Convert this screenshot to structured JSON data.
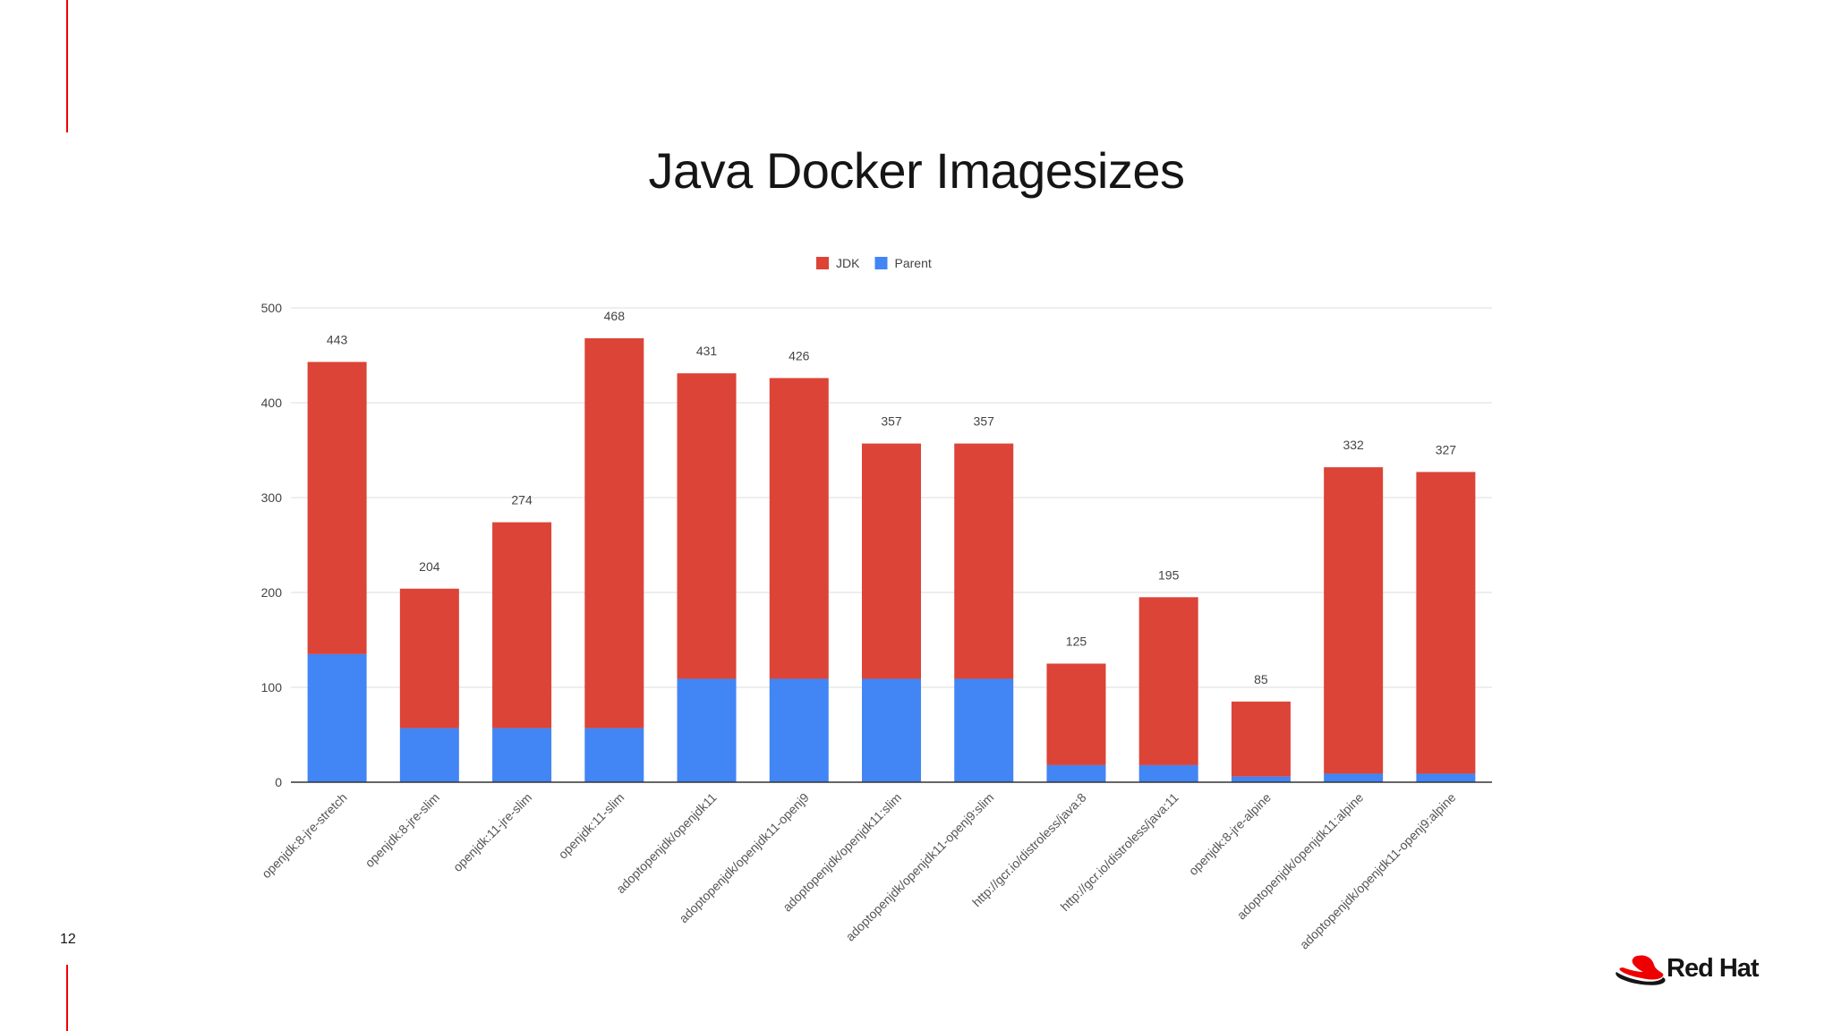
{
  "slide": {
    "title": "Java Docker Imagesizes",
    "page_number": "12",
    "brand": "Red Hat",
    "logo_icon": "red-hat-fedora-icon"
  },
  "colors": {
    "jdk": "#DB4437",
    "parent": "#4285F4",
    "accent_rule": "#EE0000",
    "gridline": "#DDDDDD",
    "axis": "#333333"
  },
  "chart_data": {
    "type": "bar",
    "stacked": true,
    "title": "",
    "xlabel": "",
    "ylabel": "",
    "ylim": [
      0,
      500
    ],
    "yticks": [
      0,
      100,
      200,
      300,
      400,
      500
    ],
    "grid": true,
    "legend_position": "top-center",
    "categories": [
      "openjdk:8-jre-stretch",
      "openjdk:8-jre-slim",
      "openjdk:11-jre-slim",
      "openjdk:11-slim",
      "adoptopenjdk/openjdk11",
      "adoptopenjdk/openjdk11-openj9",
      "adoptopenjdk/openjdk11:slim",
      "adoptopenjdk/openjdk11-openj9:slim",
      "http://gcr.io/distroless/java:8",
      "http://gcr.io/distroless/java:11",
      "openjdk:8-jre-alpine",
      "adoptopenjdk/openjdk11:alpine",
      "adoptopenjdk/openjdk11-openj9:alpine"
    ],
    "series": [
      {
        "name": "Parent",
        "color": "#4285F4",
        "values": [
          135,
          57,
          57,
          57,
          109,
          109,
          109,
          109,
          18,
          18,
          6,
          9,
          9
        ]
      },
      {
        "name": "JDK",
        "color": "#DB4437",
        "values": [
          308,
          147,
          217,
          411,
          322,
          317,
          248,
          248,
          107,
          177,
          79,
          323,
          318
        ]
      }
    ],
    "legend": [
      "JDK",
      "Parent"
    ],
    "totals": [
      443,
      204,
      274,
      468,
      431,
      426,
      357,
      357,
      125,
      195,
      85,
      332,
      327
    ]
  }
}
